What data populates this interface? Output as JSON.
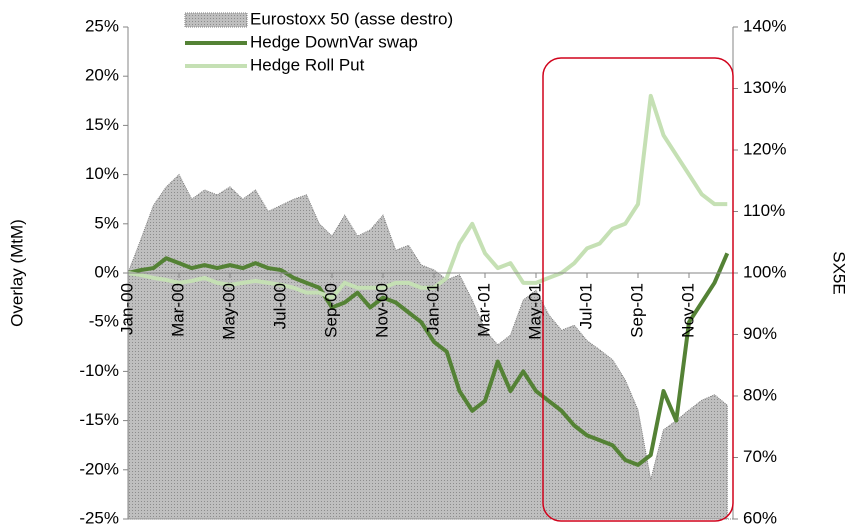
{
  "chart_data": {
    "type": "line",
    "categories": [
      "Jan-00",
      null,
      null,
      null,
      "Mar-00",
      null,
      null,
      null,
      "May-00",
      null,
      null,
      null,
      "Jul-00",
      null,
      null,
      null,
      "Sep-00",
      null,
      null,
      null,
      "Nov-00",
      null,
      null,
      null,
      "Jan-01",
      null,
      null,
      null,
      "Mar-01",
      null,
      null,
      null,
      "May-01",
      null,
      null,
      null,
      "Jul-01",
      null,
      null,
      null,
      "Sep-01",
      null,
      null,
      null,
      "Nov-01",
      null,
      null,
      null
    ],
    "series": [
      {
        "name": "Eurostoxx 50 (asse destro)",
        "color": "#bfbfbf",
        "axis": "y2",
        "kind": "area",
        "values": [
          100,
          105.4,
          111,
          114,
          116,
          112,
          113.5,
          112.7,
          114,
          112,
          113.5,
          110,
          111,
          112,
          112.7,
          108,
          106,
          109.4,
          106,
          107,
          109.4,
          103.7,
          104.5,
          101.3,
          100.5,
          98.9,
          99.7,
          95.6,
          90.7,
          88.3,
          89.9,
          95.6,
          97.2,
          93.2,
          90.7,
          91.5,
          89,
          87.5,
          85.9,
          82.6,
          77.7,
          66.4,
          74.5,
          76,
          77.7,
          79.3,
          80.2,
          78.5
        ]
      },
      {
        "name": "Hedge DownVar swap",
        "color": "#548235",
        "values": [
          0,
          0.3,
          0.5,
          1.5,
          1,
          0.5,
          0.8,
          0.5,
          0.8,
          0.5,
          1,
          0.5,
          0.3,
          -0.5,
          -1,
          -1.5,
          -3.5,
          -3,
          -2,
          -3.5,
          -2.5,
          -3,
          -4,
          -5,
          -7,
          -8,
          -12,
          -14,
          -13,
          -9,
          -12,
          -10,
          -12,
          -13,
          -14,
          -15.5,
          -16.5,
          -17,
          -17.5,
          -19,
          -19.5,
          -18.5,
          -12,
          -15,
          -5,
          -3,
          -1,
          2
        ]
      },
      {
        "name": "Hedge Roll Put",
        "color": "#c5e0b4",
        "values": [
          0,
          -0.2,
          -0.5,
          -0.7,
          -1,
          -0.8,
          -0.5,
          -1,
          -1.2,
          -1,
          -0.8,
          -1,
          -1.2,
          -1.5,
          -2,
          -2,
          -2.5,
          -1,
          -1.5,
          -1.5,
          -1.5,
          -1,
          -1,
          -1.5,
          -1.5,
          -0.5,
          3,
          5,
          2,
          0.5,
          1,
          -1,
          -1,
          -0.5,
          0,
          1,
          2.5,
          3,
          4.5,
          5,
          7,
          18,
          14,
          12,
          10,
          8,
          7,
          7
        ]
      }
    ],
    "ylabel": "Overlay (MtM)",
    "y2label": "SX5E",
    "ylim": [
      -25,
      25
    ],
    "yticks": [
      {
        "value": -25,
        "label": "-25%"
      },
      {
        "value": -20,
        "label": "-20%"
      },
      {
        "value": -15,
        "label": "-15%"
      },
      {
        "value": -10,
        "label": "-10%"
      },
      {
        "value": -5,
        "label": "-5%"
      },
      {
        "value": 0,
        "label": "0%"
      },
      {
        "value": 5,
        "label": "5%"
      },
      {
        "value": 10,
        "label": "10%"
      },
      {
        "value": 15,
        "label": "15%"
      },
      {
        "value": 20,
        "label": "20%"
      },
      {
        "value": 25,
        "label": "25%"
      }
    ],
    "y2lim": [
      60,
      140
    ],
    "y2ticks": [
      {
        "value": 60,
        "label": "60%"
      },
      {
        "value": 70,
        "label": "70%"
      },
      {
        "value": 80,
        "label": "80%"
      },
      {
        "value": 90,
        "label": "90%"
      },
      {
        "value": 100,
        "label": "100%"
      },
      {
        "value": 110,
        "label": "110%"
      },
      {
        "value": 120,
        "label": "120%"
      },
      {
        "value": 130,
        "label": "130%"
      },
      {
        "value": 140,
        "label": "140%"
      }
    ],
    "grid": false,
    "legend": "top"
  }
}
